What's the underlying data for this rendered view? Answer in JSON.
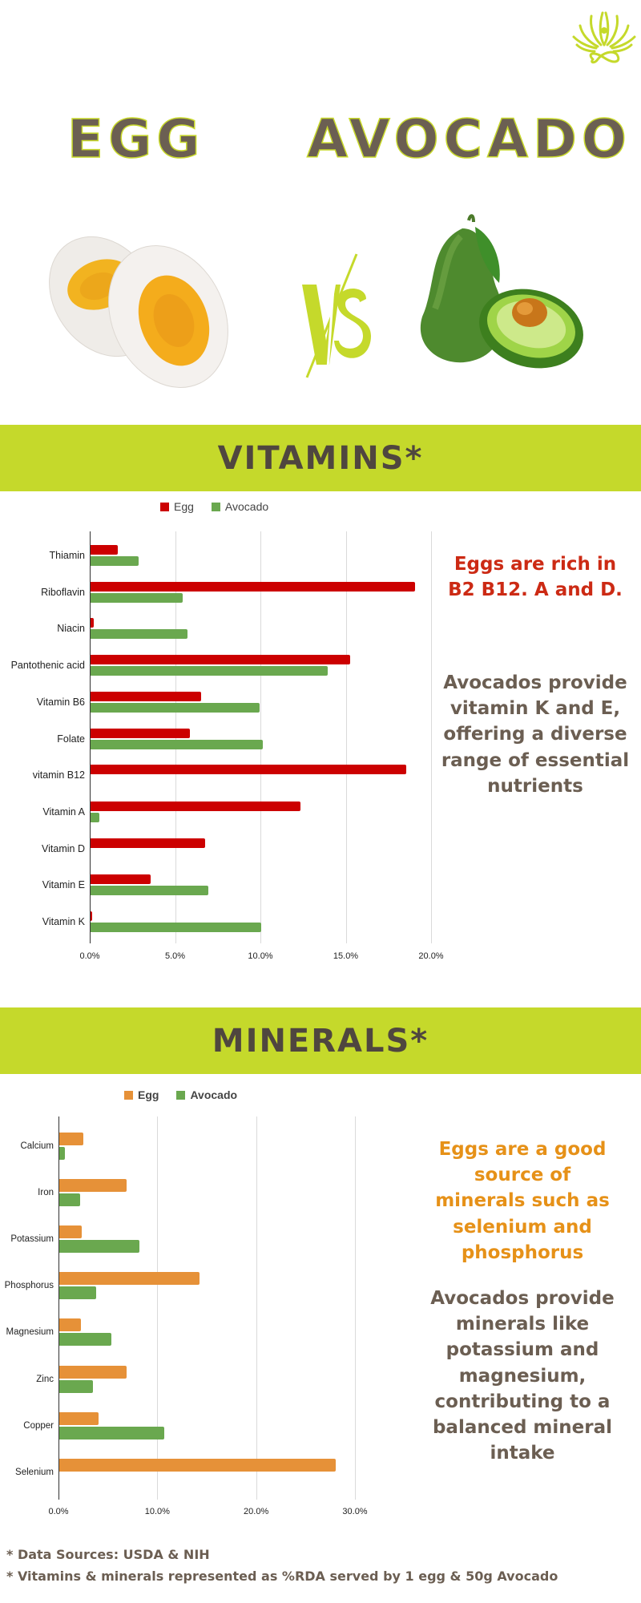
{
  "header": {
    "left_title": "EGG",
    "right_title": "AVOCADO",
    "vs_label": "VS",
    "icons": {
      "logo": "lotus-yoga-logo-icon",
      "egg": "boiled-egg-halves-illustration",
      "avocado": "avocado-illustration",
      "vs": "versus-icon"
    }
  },
  "colors": {
    "band": "#c5d92b",
    "title_text": "#6b5f52",
    "egg_vitamins": "#cc0000",
    "egg_minerals": "#e69138",
    "avocado": "#6aa84f",
    "vitamin_note": "#cc2a14",
    "mineral_note": "#e69118",
    "body_text": "#6b5e52"
  },
  "vitamins": {
    "section_title": "VITAMINS*",
    "legend": [
      {
        "label": "Egg",
        "color": "#cc0000"
      },
      {
        "label": "Avocado",
        "color": "#6aa84f"
      }
    ],
    "egg_note": "Eggs are rich in B2 B12. A and D.",
    "avocado_note": "Avocados provide vitamin K and E, offering a diverse range of essential nutrients"
  },
  "minerals": {
    "section_title": "MINERALS*",
    "legend": [
      {
        "label": "Egg",
        "color": "#e69138"
      },
      {
        "label": "Avocado",
        "color": "#6aa84f"
      }
    ],
    "egg_note": "Eggs are a good source of minerals such as selenium and phosphorus",
    "avocado_note": "Avocados provide minerals like potassium and magnesium, contributing to a balanced mineral intake"
  },
  "footer": {
    "line1": "*  Data Sources: USDA & NIH",
    "line2": "* Vitamins & minerals represented as %RDA served by 1 egg & 50g Avocado"
  },
  "chart_data": [
    {
      "type": "bar",
      "orientation": "horizontal",
      "title": "VITAMINS*",
      "xlabel": "",
      "ylabel": "",
      "categories": [
        "Thiamin",
        "Riboflavin",
        "Niacin",
        "Pantothenic acid",
        "Vitamin B6",
        "Folate",
        "vitamin B12",
        "Vitamin A",
        "Vitamin D",
        "Vitamin E",
        "Vitamin K"
      ],
      "series": [
        {
          "name": "Egg",
          "color": "#cc0000",
          "values": [
            1.6,
            19.0,
            0.2,
            15.2,
            6.5,
            5.8,
            18.5,
            12.3,
            6.7,
            3.5,
            0.1
          ]
        },
        {
          "name": "Avocado",
          "color": "#6aa84f",
          "values": [
            2.8,
            5.4,
            5.7,
            13.9,
            9.9,
            10.1,
            0,
            0.5,
            0,
            6.9,
            10.0
          ]
        }
      ],
      "xlim": [
        0,
        20
      ],
      "xticks": [
        "0.0%",
        "5.0%",
        "10.0%",
        "15.0%",
        "20.0%"
      ],
      "unit": "%RDA",
      "grid": true,
      "legend_position": "top"
    },
    {
      "type": "bar",
      "orientation": "horizontal",
      "title": "MINERALS*",
      "xlabel": "",
      "ylabel": "",
      "categories": [
        "Calcium",
        "Iron",
        "Potassium",
        "Phosphorus",
        "Magnesium",
        "Zinc",
        "Copper",
        "Selenium"
      ],
      "series": [
        {
          "name": "Egg",
          "color": "#e69138",
          "values": [
            2.4,
            6.8,
            2.3,
            14.2,
            2.2,
            6.8,
            4.0,
            28.0
          ]
        },
        {
          "name": "Avocado",
          "color": "#6aa84f",
          "values": [
            0.6,
            2.1,
            8.1,
            3.7,
            5.3,
            3.4,
            10.6,
            0
          ]
        }
      ],
      "xlim": [
        0,
        30
      ],
      "xticks": [
        "0.0%",
        "10.0%",
        "20.0%",
        "30.0%"
      ],
      "unit": "%RDA",
      "grid": true,
      "legend_position": "top"
    }
  ]
}
